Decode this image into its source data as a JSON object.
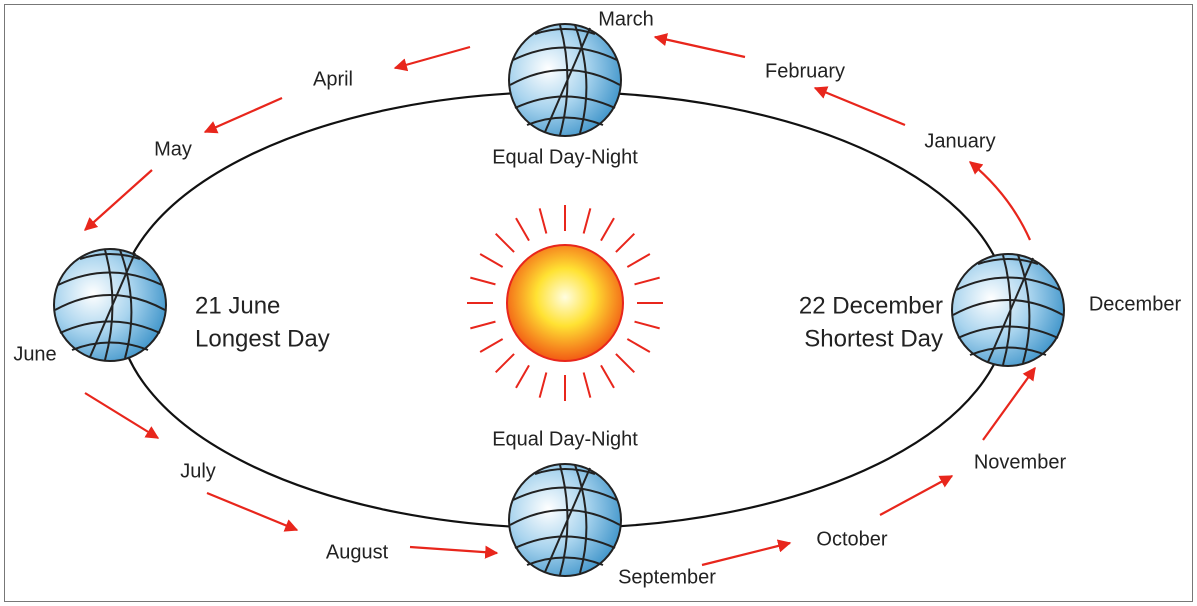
{
  "months": [
    "January",
    "February",
    "March",
    "April",
    "May",
    "June",
    "July",
    "August",
    "September",
    "October",
    "November",
    "December"
  ],
  "globes": {
    "top": "Equal Day-Night",
    "bottom": "Equal Day-Night",
    "left": [
      "21 June",
      "Longest Day"
    ],
    "right": [
      "22 December",
      "Shortest Day"
    ]
  }
}
